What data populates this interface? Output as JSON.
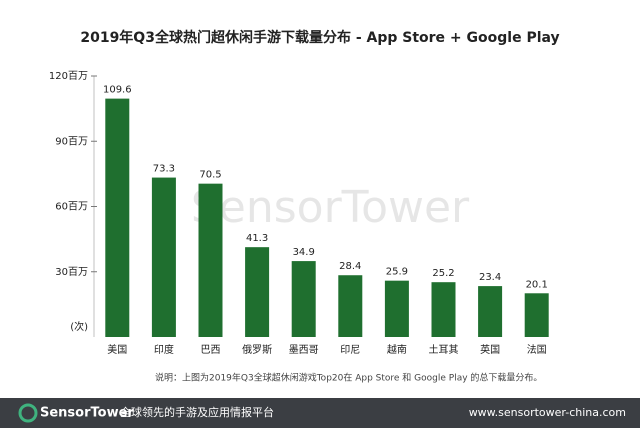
{
  "chart_data": {
    "type": "bar",
    "title": "2019年Q3全球热门超休闲手游下载量分布 - App Store + Google Play",
    "categories": [
      "美国",
      "印度",
      "巴西",
      "俄罗斯",
      "墨西哥",
      "印尼",
      "越南",
      "土耳其",
      "英国",
      "法国"
    ],
    "values": [
      109.6,
      73.3,
      70.5,
      41.3,
      34.9,
      28.4,
      25.9,
      25.2,
      23.4,
      20.1
    ],
    "color": "#1f6f2f",
    "ylim": [
      0,
      120
    ],
    "yticks": [
      {
        "value": 30,
        "label": "30百万"
      },
      {
        "value": 60,
        "label": "60百万"
      },
      {
        "value": 90,
        "label": "90百万"
      },
      {
        "value": 120,
        "label": "120百万"
      }
    ],
    "y_unit": "(次)",
    "note": "说明：上图为2019年Q3全球超休闲游戏Top20在 App Store 和 Google Play 的总下载量分布。",
    "watermark": "SensorTower"
  },
  "footer": {
    "brand": "SensorTower",
    "slogan": "全球领先的手游及应用情报平台",
    "url": "www.sensortower-china.com"
  }
}
